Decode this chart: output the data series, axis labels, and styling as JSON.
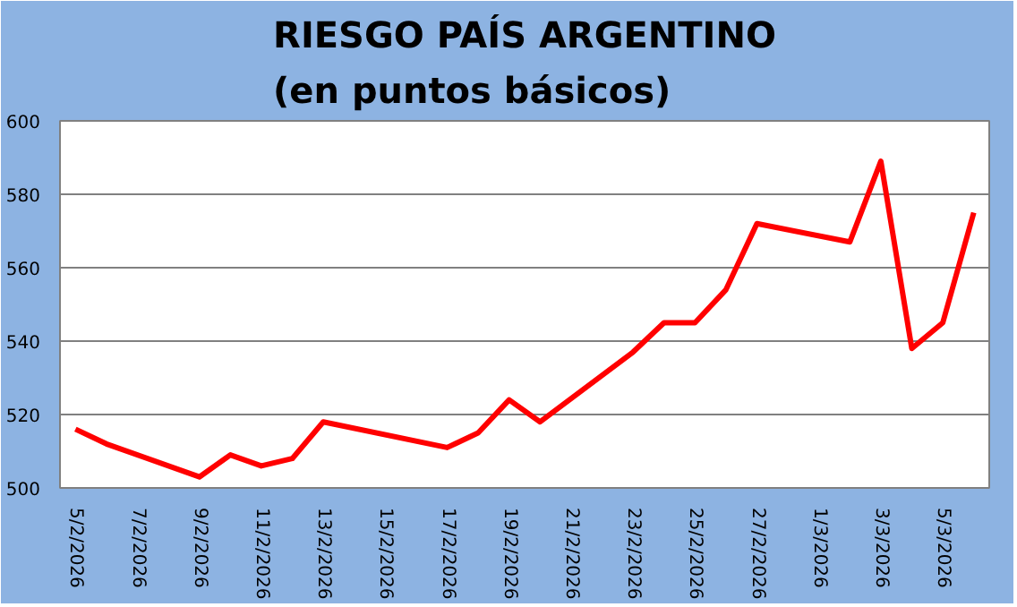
{
  "chart_data": {
    "type": "line",
    "title": "RIESGO PAÍS ARGENTINO\n(en puntos básicos)",
    "x": [
      "2026-02-05",
      "2026-02-06",
      "2026-02-09",
      "2026-02-10",
      "2026-02-11",
      "2026-02-12",
      "2026-02-13",
      "2026-02-17",
      "2026-02-18",
      "2026-02-19",
      "2026-02-20",
      "2026-02-23",
      "2026-02-24",
      "2026-02-25",
      "2026-02-26",
      "2026-02-27",
      "2026-03-02",
      "2026-03-03",
      "2026-03-04",
      "2026-03-05",
      "2026-03-06"
    ],
    "series": [
      {
        "color": "#ff0000",
        "values": [
          516,
          512,
          503,
          509,
          506,
          508,
          518,
          511,
          515,
          524,
          518,
          537,
          545,
          545,
          554,
          572,
          567,
          589,
          538,
          545,
          575
        ]
      }
    ],
    "xlim": [
      "2026-02-04T12:00",
      "2026-03-06T12:00"
    ],
    "xticks": [
      {
        "value": "2026-02-05",
        "label": "5/2/2026"
      },
      {
        "value": "2026-02-07",
        "label": "7/2/2026"
      },
      {
        "value": "2026-02-09",
        "label": "9/2/2026"
      },
      {
        "value": "2026-02-11",
        "label": "11/2/2026"
      },
      {
        "value": "2026-02-13",
        "label": "13/2/2026"
      },
      {
        "value": "2026-02-15",
        "label": "15/2/2026"
      },
      {
        "value": "2026-02-17",
        "label": "17/2/2026"
      },
      {
        "value": "2026-02-19",
        "label": "19/2/2026"
      },
      {
        "value": "2026-02-21",
        "label": "21/2/2026"
      },
      {
        "value": "2026-02-23",
        "label": "23/2/2026"
      },
      {
        "value": "2026-02-25",
        "label": "25/2/2026"
      },
      {
        "value": "2026-02-27",
        "label": "27/2/2026"
      },
      {
        "value": "2026-03-01",
        "label": "1/3/2026"
      },
      {
        "value": "2026-03-03",
        "label": "3/3/2026"
      },
      {
        "value": "2026-03-05",
        "label": "5/3/2026"
      }
    ],
    "ylim": [
      500,
      600
    ],
    "yticks": [
      500,
      520,
      540,
      560,
      580,
      600
    ],
    "grid": "y",
    "marker": "none",
    "line_style": "solid"
  }
}
